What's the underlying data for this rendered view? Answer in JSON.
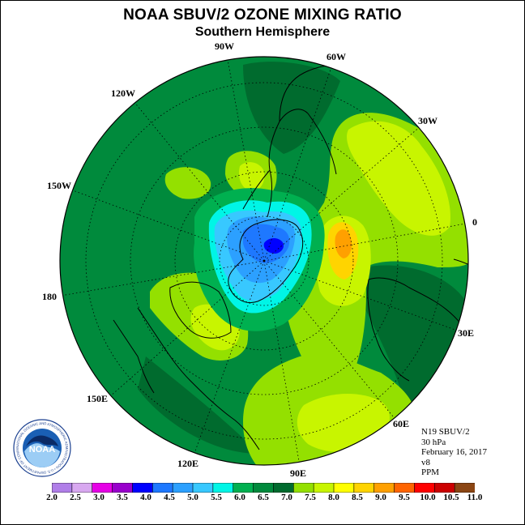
{
  "title": "NOAA SBUV/2 OZONE MIXING RATIO",
  "subtitle": "Southern Hemisphere",
  "longitude_labels": {
    "w90": "90W",
    "w60": "60W",
    "w30": "30W",
    "e0": "0",
    "e30": "30E",
    "e60": "60E",
    "e90": "90E",
    "e120": "120E",
    "e150": "150E",
    "e180": "180",
    "w150": "150W",
    "w120": "120W"
  },
  "info": {
    "satellite": "N19 SBUV/2",
    "pressure": "30 hPa",
    "date": "February 16, 2017",
    "version": "v8",
    "units": "PPM"
  },
  "logo": {
    "text": "NOAA",
    "ring_text": "NATIONAL OCEANIC AND ATMOSPHERIC ADMINISTRATION • U.S. DEPARTMENT OF COMMERCE"
  },
  "colorbar": {
    "labels": [
      "2.0",
      "2.5",
      "3.0",
      "3.5",
      "4.0",
      "4.5",
      "5.0",
      "5.5",
      "6.0",
      "6.5",
      "7.0",
      "7.5",
      "8.0",
      "8.5",
      "9.0",
      "9.5",
      "10.0",
      "10.5",
      "11.0"
    ],
    "colors": [
      "#b07ee8",
      "#d8a8f0",
      "#e600e6",
      "#9900cc",
      "#0000ff",
      "#1e78ff",
      "#2ca0ff",
      "#38c8ff",
      "#00f5e6",
      "#00b050",
      "#008a3c",
      "#006b2e",
      "#94e000",
      "#c8f500",
      "#ffff00",
      "#ffd400",
      "#ffa000",
      "#ff6400",
      "#ff0000",
      "#cc0000",
      "#8b4513"
    ]
  }
}
